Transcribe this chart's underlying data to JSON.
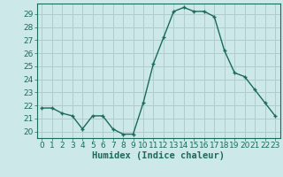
{
  "x": [
    0,
    1,
    2,
    3,
    4,
    5,
    6,
    7,
    8,
    9,
    10,
    11,
    12,
    13,
    14,
    15,
    16,
    17,
    18,
    19,
    20,
    21,
    22,
    23
  ],
  "y": [
    21.8,
    21.8,
    21.4,
    21.2,
    20.2,
    21.2,
    21.2,
    20.2,
    19.8,
    19.8,
    22.2,
    25.2,
    27.2,
    29.2,
    29.5,
    29.2,
    29.2,
    28.8,
    26.2,
    24.5,
    24.2,
    23.2,
    22.2,
    21.2
  ],
  "line_color": "#1a6b5a",
  "marker": "+",
  "marker_size": 3,
  "marker_linewidth": 1.0,
  "bg_color": "#cce8e8",
  "grid_color": "#b0cccc",
  "xlabel": "Humidex (Indice chaleur)",
  "ylim": [
    19.5,
    29.8
  ],
  "xlim": [
    -0.5,
    23.5
  ],
  "yticks": [
    20,
    21,
    22,
    23,
    24,
    25,
    26,
    27,
    28,
    29
  ],
  "xticks": [
    0,
    1,
    2,
    3,
    4,
    5,
    6,
    7,
    8,
    9,
    10,
    11,
    12,
    13,
    14,
    15,
    16,
    17,
    18,
    19,
    20,
    21,
    22,
    23
  ],
  "tick_label_fontsize": 6.5,
  "xlabel_fontsize": 7.5,
  "tick_color": "#1a6b5a",
  "axis_color": "#1a6b5a",
  "line_width": 1.0
}
